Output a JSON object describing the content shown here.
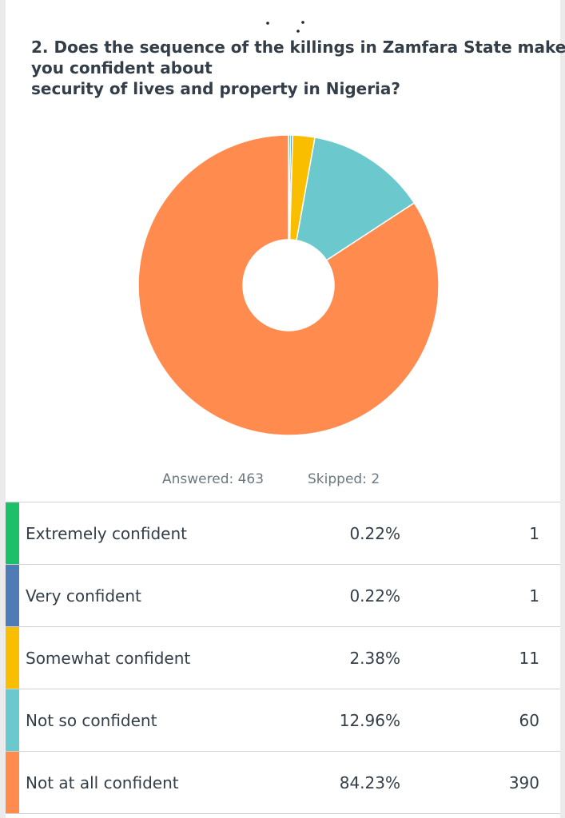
{
  "question": {
    "lines": [
      "2. Does the sequence of the killings in Zamfara State make",
      "you confident about",
      "security of lives and property in Nigeria?"
    ]
  },
  "summary": {
    "answered": "Answered: 463",
    "skipped": "Skipped: 2"
  },
  "colors": {
    "extremely": "#1cbf6a",
    "very": "#507cb6",
    "somewhat": "#f9be00",
    "not_so": "#6bc8cd",
    "not_at_all": "#ff8b4f"
  },
  "table": {
    "rows": [
      {
        "label": "Extremely confident",
        "percent": "0.22%",
        "count": "1"
      },
      {
        "label": "Very confident",
        "percent": "0.22%",
        "count": "1"
      },
      {
        "label": "Somewhat confident",
        "percent": "2.38%",
        "count": "11"
      },
      {
        "label": "Not so confident",
        "percent": "12.96%",
        "count": "60"
      },
      {
        "label": "Not at all confident",
        "percent": "84.23%",
        "count": "390"
      }
    ]
  },
  "chart_data": {
    "type": "pie",
    "variant": "donut",
    "start": "top",
    "direction": "clockwise",
    "categories": [
      "Extremely confident",
      "Very confident",
      "Somewhat confident",
      "Not so confident",
      "Not at all confident"
    ],
    "values": [
      0.22,
      0.22,
      2.38,
      12.96,
      84.23
    ],
    "counts": [
      1,
      1,
      11,
      60,
      390
    ],
    "colors": [
      "#1cbf6a",
      "#507cb6",
      "#f9be00",
      "#6bc8cd",
      "#ff8b4f"
    ]
  }
}
